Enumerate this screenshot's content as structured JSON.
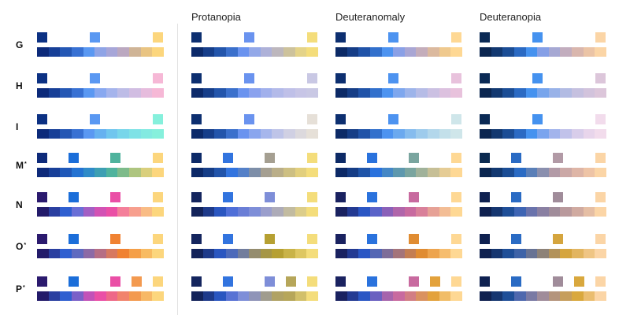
{
  "headers": [
    "Protanopia",
    "Deuteranomaly",
    "Deuteranopia"
  ],
  "rows": [
    {
      "label": "G",
      "asterisk": false,
      "variants": [
        {
          "keys": [
            "#0c3183",
            "#5a98f2",
            "#fcd67d"
          ],
          "ramp": [
            "#0c2a7a",
            "#173f97",
            "#2457b4",
            "#3871d3",
            "#5a98f2",
            "#8fa4e6",
            "#a7a6d8",
            "#bba8c0",
            "#cfb496",
            "#e9c482",
            "#fcd67d"
          ]
        },
        {
          "keys": [
            "#0d2f70",
            "#6a93ef",
            "#f4dd7b"
          ],
          "ramp": [
            "#0c2a6a",
            "#163e8a",
            "#2355ab",
            "#3b70cc",
            "#6a93ef",
            "#93a8e8",
            "#aeb1d8",
            "#bdb7bd",
            "#cdc29c",
            "#e4d389",
            "#f4dd7b"
          ]
        },
        {
          "keys": [
            "#0d2f70",
            "#4d93f0",
            "#fed894"
          ],
          "ramp": [
            "#0c2a66",
            "#153d86",
            "#2053a8",
            "#3270cc",
            "#4d93f0",
            "#8aa0e6",
            "#a9a6d4",
            "#c4adbb",
            "#dbb99e",
            "#efc98e",
            "#fed894"
          ]
        },
        {
          "keys": [
            "#0b2a55",
            "#4592ef",
            "#fbd5a6"
          ],
          "ramp": [
            "#0b2650",
            "#123870",
            "#1b4d95",
            "#2b6ac3",
            "#4592ef",
            "#859fe6",
            "#a6a8d3",
            "#c2adbe",
            "#d9b6ad",
            "#ebc4a6",
            "#fbd5a6"
          ]
        }
      ]
    },
    {
      "label": "H",
      "asterisk": false,
      "variants": [
        {
          "keys": [
            "#0c3183",
            "#5a98f2",
            "#f6b8d6"
          ],
          "ramp": [
            "#0c2a7a",
            "#173f97",
            "#2457b4",
            "#3871d3",
            "#5a98f2",
            "#88a8f0",
            "#a5b4ec",
            "#bdbce6",
            "#d1bde2",
            "#e6bcdd",
            "#f6b8d6"
          ]
        },
        {
          "keys": [
            "#0d2f70",
            "#6a93ef",
            "#c9c8e4"
          ],
          "ramp": [
            "#0c2a6a",
            "#163e8a",
            "#2355ab",
            "#3b70cc",
            "#6a93ef",
            "#8aa2ee",
            "#a1b0ec",
            "#b3bae9",
            "#bfc0e8",
            "#c7c5e6",
            "#c9c8e4"
          ]
        },
        {
          "keys": [
            "#0d2f70",
            "#4d93f0",
            "#e8c2dc"
          ],
          "ramp": [
            "#0c2a66",
            "#153d86",
            "#2053a8",
            "#3270cc",
            "#4d93f0",
            "#7ea7ee",
            "#9db4ea",
            "#b6bce6",
            "#cbc0e2",
            "#dcc1df",
            "#e8c2dc"
          ]
        },
        {
          "keys": [
            "#0b2a55",
            "#4592ef",
            "#dcc6da"
          ],
          "ramp": [
            "#0b2650",
            "#123870",
            "#1b4d95",
            "#2b6ac3",
            "#4592ef",
            "#78a5ec",
            "#98b2e8",
            "#b2bbe3",
            "#c5c0df",
            "#d2c3dc",
            "#dcc6da"
          ]
        }
      ]
    },
    {
      "label": "I",
      "asterisk": false,
      "variants": [
        {
          "keys": [
            "#0c3183",
            "#5a98f2",
            "#86f0dc"
          ],
          "ramp": [
            "#0c2a7a",
            "#173f97",
            "#2457b4",
            "#3871d3",
            "#5a98f2",
            "#66b1f0",
            "#70c6ee",
            "#78d6ea",
            "#7fe2e6",
            "#83eae1",
            "#86f0dc"
          ]
        },
        {
          "keys": [
            "#0d2f70",
            "#6a93ef",
            "#e6e0d8"
          ],
          "ramp": [
            "#0c2a6a",
            "#163e8a",
            "#2355ab",
            "#3b70cc",
            "#6a93ef",
            "#8aa6ee",
            "#a6b6ec",
            "#bec4e8",
            "#d0d0e3",
            "#dcd9dd",
            "#e6e0d8"
          ]
        },
        {
          "keys": [
            "#0d2f70",
            "#4d93f0",
            "#cfe6ea"
          ],
          "ramp": [
            "#0c2a66",
            "#153d86",
            "#2053a8",
            "#3270cc",
            "#4d93f0",
            "#6ba9ef",
            "#86bcee",
            "#9ecbec",
            "#b3d7eb",
            "#c3e0ea",
            "#cfe6ea"
          ]
        },
        {
          "keys": [
            "#0b2a55",
            "#4592ef",
            "#f2dcec"
          ],
          "ramp": [
            "#0b2650",
            "#123870",
            "#1b4d95",
            "#2b6ac3",
            "#4592ef",
            "#7aa4ee",
            "#a2b4ec",
            "#c1c2ea",
            "#d8cdea",
            "#e8d5eb",
            "#f2dcec"
          ]
        }
      ]
    },
    {
      "label": "M",
      "asterisk": true,
      "variants": [
        {
          "keys": [
            "#0e2a7a",
            "#1b6ed9",
            "#4fb39d",
            "#fcd67d"
          ],
          "ramp": [
            "#0e2a7a",
            "#183f98",
            "#1f58b8",
            "#2473d2",
            "#2f8bc8",
            "#3d9fb3",
            "#4fb39d",
            "#7dbb8a",
            "#aec57f",
            "#d9cf7c",
            "#fcd67d"
          ]
        },
        {
          "keys": [
            "#0d2a68",
            "#3274df",
            "#a59f91",
            "#f4dd7b"
          ],
          "ramp": [
            "#0c2968",
            "#153d87",
            "#2154aa",
            "#3274df",
            "#5480c8",
            "#7d8ea8",
            "#a59f91",
            "#baae88",
            "#cdbf82",
            "#e2cf7d",
            "#f4dd7b"
          ]
        },
        {
          "keys": [
            "#0d2a66",
            "#2a72dd",
            "#7aa59f",
            "#fed894"
          ],
          "ramp": [
            "#0c2966",
            "#153c85",
            "#1f54a8",
            "#2a72dd",
            "#4487c6",
            "#5e98ae",
            "#7aa59f",
            "#a0b29a",
            "#c6bf96",
            "#e5cc95",
            "#fed894"
          ]
        },
        {
          "keys": [
            "#0b2a50",
            "#2a6bc4",
            "#b29aa6",
            "#fbd5a6"
          ],
          "ramp": [
            "#0b2650",
            "#123870",
            "#1b4d95",
            "#2a6bc4",
            "#5a7fb8",
            "#8a8fae",
            "#b29aa6",
            "#cba8a6",
            "#deb5a6",
            "#eec4a6",
            "#fbd5a6"
          ]
        }
      ]
    },
    {
      "label": "N",
      "asterisk": false,
      "variants": [
        {
          "keys": [
            "#2b1a6e",
            "#1b6ed9",
            "#ea4fa6",
            "#fcd67d"
          ],
          "ramp": [
            "#231b6a",
            "#2a3fa0",
            "#2f5fd0",
            "#6a6fd6",
            "#a35fc4",
            "#d252b4",
            "#ea4fa6",
            "#f47f9a",
            "#f79f8e",
            "#f9bc85",
            "#fcd67d"
          ]
        },
        {
          "keys": [
            "#14255e",
            "#3274df",
            "#7e8ed8",
            "#f4dd7b"
          ],
          "ramp": [
            "#13235a",
            "#1e3a8a",
            "#2a56c0",
            "#4f6fd8",
            "#6a7ed6",
            "#7e8ed8",
            "#9a9ecc",
            "#adabb8",
            "#c2bba0",
            "#dccd8a",
            "#f4dd7b"
          ]
        },
        {
          "keys": [
            "#1a2260",
            "#2a72dd",
            "#c86a9f",
            "#fed894"
          ],
          "ramp": [
            "#1a2260",
            "#233a92",
            "#2a56c4",
            "#5a63c8",
            "#8a60b8",
            "#b065aa",
            "#c86a9f",
            "#d9809a",
            "#e6a196",
            "#f3bd95",
            "#fed894"
          ]
        },
        {
          "keys": [
            "#0f2150",
            "#2a6bc4",
            "#a08c9a",
            "#fbd5a6"
          ],
          "ramp": [
            "#0f2150",
            "#163670",
            "#1f4f98",
            "#3e65b4",
            "#6a73ac",
            "#8a80a2",
            "#a08c9a",
            "#b9999c",
            "#d0aaa0",
            "#e5bea4",
            "#fbd5a6"
          ]
        }
      ]
    },
    {
      "label": "O",
      "asterisk": true,
      "variants": [
        {
          "keys": [
            "#2b1a6e",
            "#1b6ed9",
            "#f08232",
            "#fcd67d"
          ],
          "ramp": [
            "#231b6a",
            "#2a3fa0",
            "#2f5fd0",
            "#5f6ac0",
            "#8c6aa6",
            "#b66e84",
            "#d77960",
            "#f08232",
            "#f59f48",
            "#f8bb62",
            "#fcd67d"
          ]
        },
        {
          "keys": [
            "#14255e",
            "#3274df",
            "#b6a032",
            "#f4dd7b"
          ],
          "ramp": [
            "#13235a",
            "#1e3a8a",
            "#2a56c0",
            "#4d6aba",
            "#727d9c",
            "#948c6e",
            "#a69646",
            "#b6a032",
            "#c9b348",
            "#dec762",
            "#f4dd7b"
          ]
        },
        {
          "keys": [
            "#1a2260",
            "#2a72dd",
            "#e08c32",
            "#fed894"
          ],
          "ramp": [
            "#1a2260",
            "#233a92",
            "#2a56c4",
            "#5466b4",
            "#7e6d98",
            "#a4747a",
            "#c47e52",
            "#e08c32",
            "#eda44e",
            "#f6bd6e",
            "#fed894"
          ]
        },
        {
          "keys": [
            "#0f2150",
            "#2a6bc4",
            "#d5a53e",
            "#fbd5a6"
          ],
          "ramp": [
            "#0f2150",
            "#163670",
            "#1f4f98",
            "#3e63a8",
            "#687394",
            "#8d8278",
            "#b2925a",
            "#d5a53e",
            "#e2b560",
            "#efc584",
            "#fbd5a6"
          ]
        }
      ]
    },
    {
      "label": "P",
      "asterisk": true,
      "variants": [
        {
          "keys": [
            "#2b1a6e",
            "#1b6ed9",
            "#ea4fa6",
            "#f39a50",
            "#fcd67d"
          ],
          "ramp": [
            "#231b6a",
            "#2a3fa0",
            "#2f5fd0",
            "#7a60c8",
            "#c252b8",
            "#ea4fa6",
            "#ee6888",
            "#f1836c",
            "#f39a50",
            "#f7b866",
            "#fcd67d"
          ]
        },
        {
          "keys": [
            "#14255e",
            "#3274df",
            "#7e8ed8",
            "#b6a65a",
            "#f4dd7b"
          ],
          "ramp": [
            "#13235a",
            "#1e3a8a",
            "#2a56c0",
            "#5872d4",
            "#7e8ed8",
            "#8f94b8",
            "#a09c8e",
            "#b0a264",
            "#b6a65a",
            "#d2c06a",
            "#f4dd7b"
          ]
        },
        {
          "keys": [
            "#1a2260",
            "#2a72dd",
            "#c86a9f",
            "#e3a23c",
            "#fed894"
          ],
          "ramp": [
            "#1a2260",
            "#233a92",
            "#2a56c4",
            "#6a60c0",
            "#a664ac",
            "#c86a9f",
            "#d27e84",
            "#da9260",
            "#e3a23c",
            "#f1bd68",
            "#fed894"
          ]
        },
        {
          "keys": [
            "#0f2150",
            "#2a6bc4",
            "#a08c9a",
            "#d9a83e",
            "#fbd5a6"
          ],
          "ramp": [
            "#0f2150",
            "#163670",
            "#1f4f98",
            "#4e68ae",
            "#7a7aa4",
            "#a08c9a",
            "#b4947c",
            "#c69e5c",
            "#d9a83e",
            "#eabd70",
            "#fbd5a6"
          ]
        }
      ]
    }
  ]
}
